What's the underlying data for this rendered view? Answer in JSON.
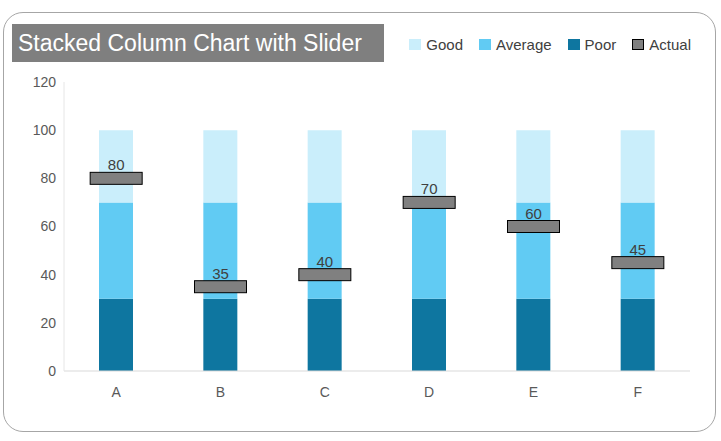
{
  "chart_data": {
    "type": "bar",
    "title": "Stacked Column Chart with Slider",
    "categories": [
      "A",
      "B",
      "C",
      "D",
      "E",
      "F"
    ],
    "series": [
      {
        "name": "Good",
        "color": "#caeefb",
        "type": "bar",
        "values": [
          30,
          30,
          30,
          30,
          30,
          30
        ]
      },
      {
        "name": "Average",
        "color": "#61cbf3",
        "type": "bar",
        "values": [
          40,
          40,
          40,
          40,
          40,
          40
        ]
      },
      {
        "name": "Poor",
        "color": "#0e76a0",
        "type": "bar",
        "values": [
          30,
          30,
          30,
          30,
          30,
          30
        ]
      },
      {
        "name": "Actual",
        "color": "#808080",
        "type": "scatter",
        "marker": "rectangle",
        "data_labels": true,
        "values": [
          80,
          35,
          40,
          70,
          60,
          45
        ]
      }
    ],
    "stacked": true,
    "ylim": [
      0,
      120
    ],
    "yticks": [
      0,
      20,
      40,
      60,
      80,
      100,
      120
    ],
    "grid": false,
    "legend": "top-right"
  }
}
